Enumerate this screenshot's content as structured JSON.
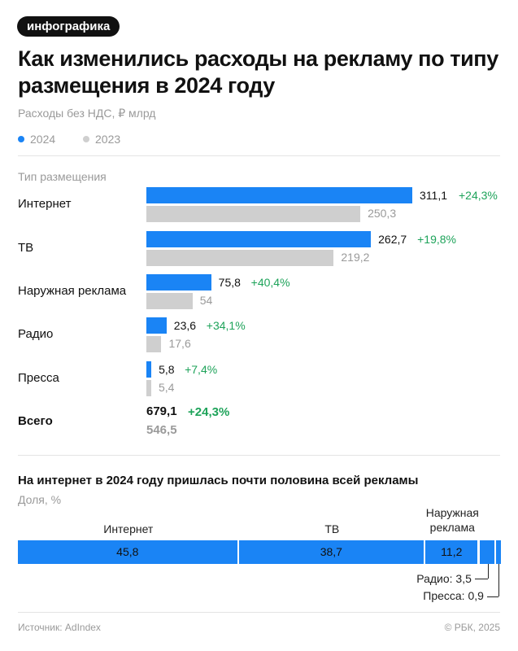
{
  "badge": "инфографика",
  "title": "Как изменились расходы на рекламу по типу размещения в 2024 году",
  "subtitle": "Расходы без НДС, ₽ млрд",
  "legend": [
    {
      "label": "2024",
      "color": "#1a84f5"
    },
    {
      "label": "2023",
      "color": "#cfcfcf"
    }
  ],
  "column_header": "Тип размещения",
  "chart_data": [
    {
      "type": "bar",
      "orientation": "horizontal",
      "categories": [
        "Интернет",
        "ТВ",
        "Наружная реклама",
        "Радио",
        "Пресса"
      ],
      "series": [
        {
          "name": "2024",
          "values": [
            311.1,
            262.7,
            75.8,
            23.6,
            5.8
          ],
          "labels": [
            "311,1",
            "262,7",
            "75,8",
            "23,6",
            "5,8"
          ]
        },
        {
          "name": "2023",
          "values": [
            250.3,
            219.2,
            54,
            17.6,
            5.4
          ],
          "labels": [
            "250,3",
            "219,2",
            "54",
            "17,6",
            "5,4"
          ]
        }
      ],
      "change_labels": [
        "+24,3%",
        "+19,8%",
        "+40,4%",
        "+34,1%",
        "+7,4%"
      ],
      "total": {
        "label": "Всего",
        "value_2024": "679,1",
        "value_2023": "546,5",
        "change": "+24,3%"
      },
      "colors": {
        "2024": "#1a84f5",
        "2023": "#cfcfcf",
        "change": "#1ea35a"
      }
    },
    {
      "type": "bar",
      "orientation": "stacked-horizontal",
      "title": "На интернет в 2024 году пришлась почти половина всей рекламы",
      "unit": "Доля, %",
      "categories": [
        "Интернет",
        "ТВ",
        "Наружная реклама",
        "Радио",
        "Пресса"
      ],
      "values": [
        45.8,
        38.7,
        11.2,
        3.5,
        0.9
      ],
      "segment_labels": [
        "45,8",
        "38,7",
        "11,2",
        "",
        ""
      ],
      "top_labels": [
        "Интернет",
        "ТВ",
        "Наружная\nреклама"
      ],
      "callouts": [
        "Радио: 3,5",
        "Пресса: 0,9"
      ],
      "color": "#1a84f5"
    }
  ],
  "footer": {
    "source": "Источник: AdIndex",
    "copyright": "© РБК, 2025"
  }
}
